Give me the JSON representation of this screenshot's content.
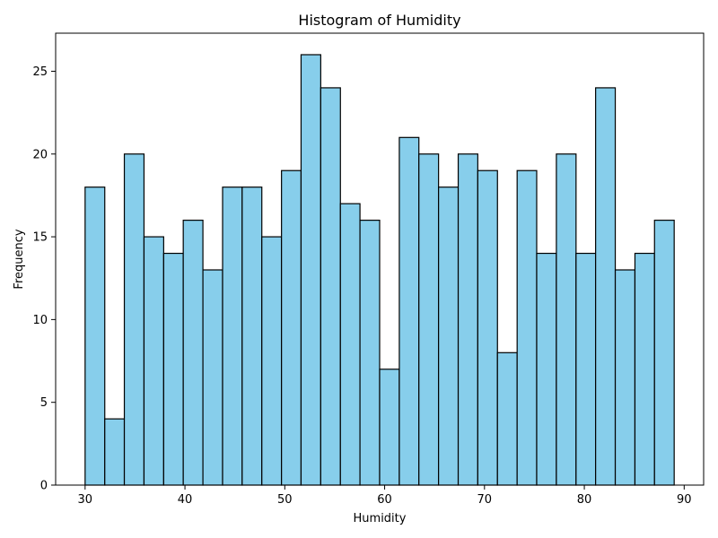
{
  "chart_data": {
    "type": "bar",
    "title": "Histogram of Humidity",
    "xlabel": "Humidity",
    "ylabel": "Frequency",
    "bin_edges": [
      30,
      31.97,
      33.93,
      35.9,
      37.87,
      39.83,
      41.8,
      43.77,
      45.73,
      47.7,
      49.67,
      51.63,
      53.6,
      55.57,
      57.53,
      59.5,
      61.47,
      63.43,
      65.4,
      67.37,
      69.33,
      71.3,
      73.27,
      75.23,
      77.2,
      79.17,
      81.13,
      83.1,
      85.07,
      87.03,
      89
    ],
    "values": [
      18,
      4,
      20,
      15,
      14,
      16,
      13,
      18,
      18,
      15,
      19,
      26,
      24,
      17,
      16,
      7,
      21,
      20,
      18,
      20,
      19,
      8,
      19,
      14,
      20,
      14,
      24,
      13,
      14,
      16
    ],
    "xlim": [
      27.05,
      91.95
    ],
    "ylim": [
      0,
      27.3
    ],
    "xticks": [
      30,
      40,
      50,
      60,
      70,
      80,
      90
    ],
    "yticks": [
      0,
      5,
      10,
      15,
      20,
      25
    ],
    "colors": {
      "bar_fill": "#87ceeb",
      "bar_edge": "#000000",
      "axis": "#000000"
    }
  }
}
